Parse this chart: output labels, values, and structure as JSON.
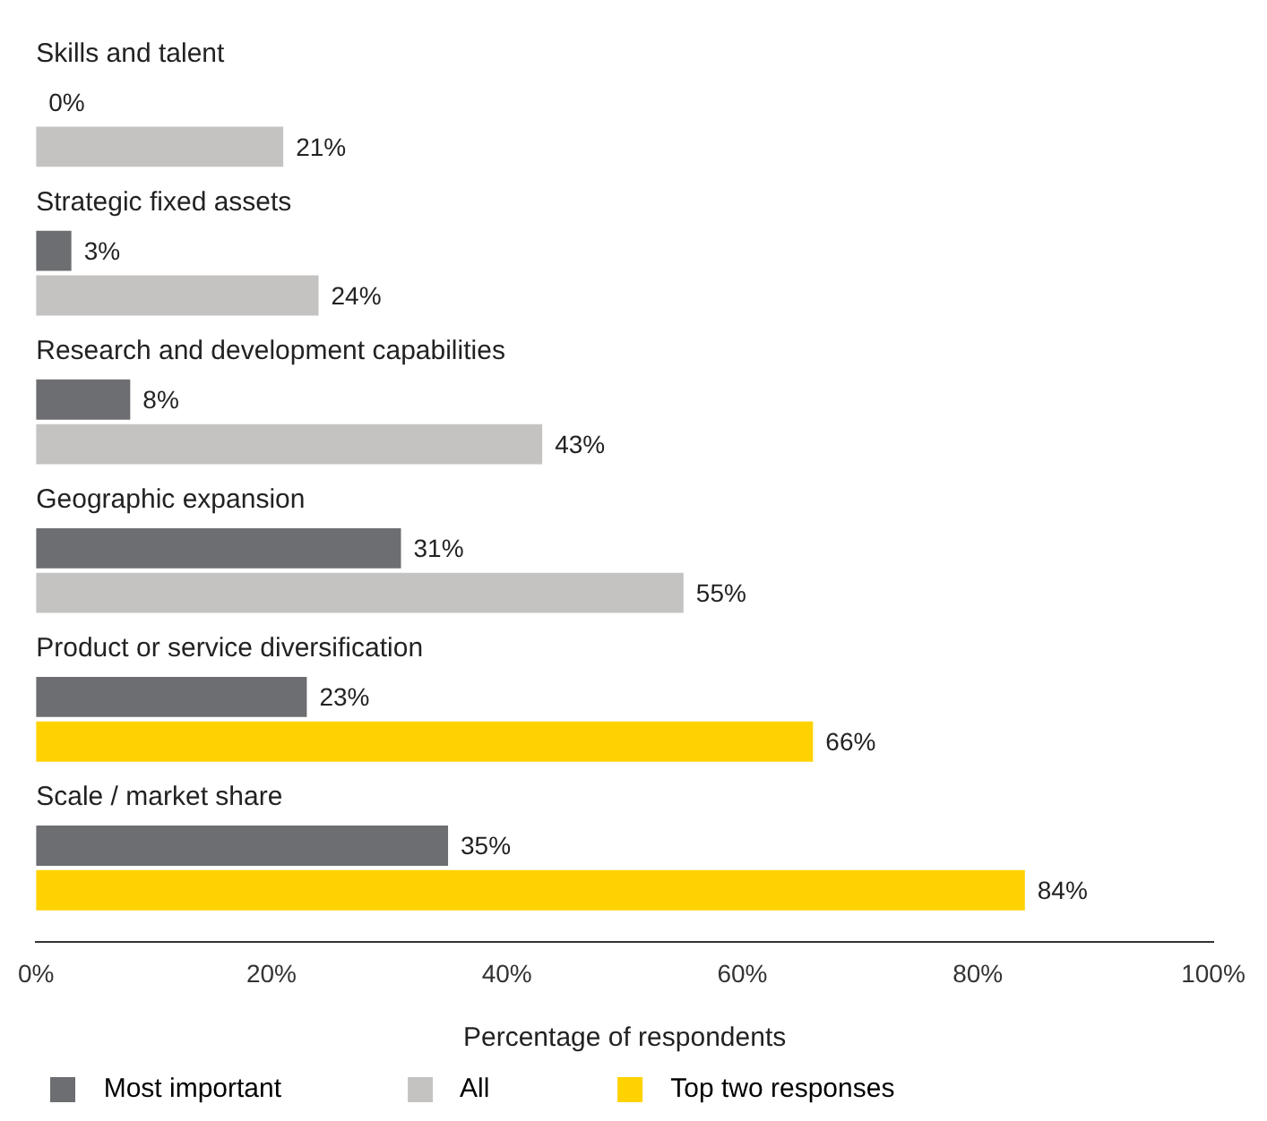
{
  "chart_data": {
    "type": "bar",
    "orientation": "horizontal",
    "xlabel": "Percentage of respondents",
    "categories": [
      "Skills and talent",
      "Strategic fixed assets",
      "Research and development capabilities",
      "Geographic expansion",
      "Product or service diversification",
      "Scale / market share"
    ],
    "series": [
      {
        "name": "Most important",
        "color": "#6d6e71",
        "values": [
          0,
          3,
          8,
          31,
          23,
          35
        ],
        "value_labels": [
          "0%",
          "3%",
          "8%",
          "31%",
          "23%",
          "35%"
        ]
      },
      {
        "name": "All",
        "color": "#c4c3c1",
        "values": [
          21,
          24,
          43,
          55,
          null,
          null
        ],
        "value_labels": [
          "21%",
          "24%",
          "43%",
          "55%",
          null,
          null
        ]
      },
      {
        "name": "Top two responses",
        "color": "#ffd200",
        "values": [
          null,
          null,
          null,
          null,
          66,
          84
        ],
        "value_labels": [
          null,
          null,
          null,
          null,
          "66%",
          "84%"
        ]
      }
    ],
    "xlim": [
      0,
      100
    ],
    "xticks": [
      {
        "value": 0,
        "label": "0%"
      },
      {
        "value": 20,
        "label": "20%"
      },
      {
        "value": 40,
        "label": "40%"
      },
      {
        "value": 60,
        "label": "60%"
      },
      {
        "value": 80,
        "label": "80%"
      },
      {
        "value": 100,
        "label": "100%"
      }
    ],
    "grid": false,
    "legend": "bottom"
  }
}
